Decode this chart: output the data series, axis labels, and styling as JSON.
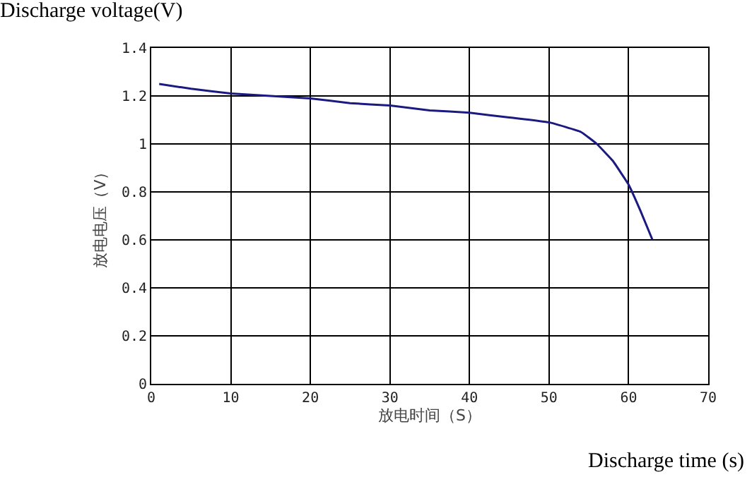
{
  "chart_data": {
    "type": "line",
    "title": "Discharge voltage(V)",
    "xlabel": "放电时间（S）",
    "ylabel": "放电电压（V）",
    "annotations": [
      "Discharge time (s)"
    ],
    "x": [
      1,
      5,
      10,
      15,
      20,
      25,
      30,
      35,
      40,
      45,
      50,
      54,
      56,
      58,
      60,
      61.5,
      63
    ],
    "series": [
      {
        "color": "#1a1a80",
        "values": [
          1.25,
          1.23,
          1.21,
          1.2,
          1.19,
          1.17,
          1.16,
          1.14,
          1.13,
          1.11,
          1.09,
          1.05,
          1.0,
          0.93,
          0.83,
          0.72,
          0.6
        ]
      }
    ],
    "xlim": [
      0,
      70
    ],
    "xticks": [
      0,
      10,
      20,
      30,
      40,
      50,
      60,
      70
    ],
    "ylim": [
      0,
      1.4
    ],
    "yticks": [
      0,
      0.2,
      0.4,
      0.6,
      0.8,
      1,
      1.2,
      1.4
    ],
    "grid": true,
    "marker": "none",
    "line_style": "solid"
  }
}
